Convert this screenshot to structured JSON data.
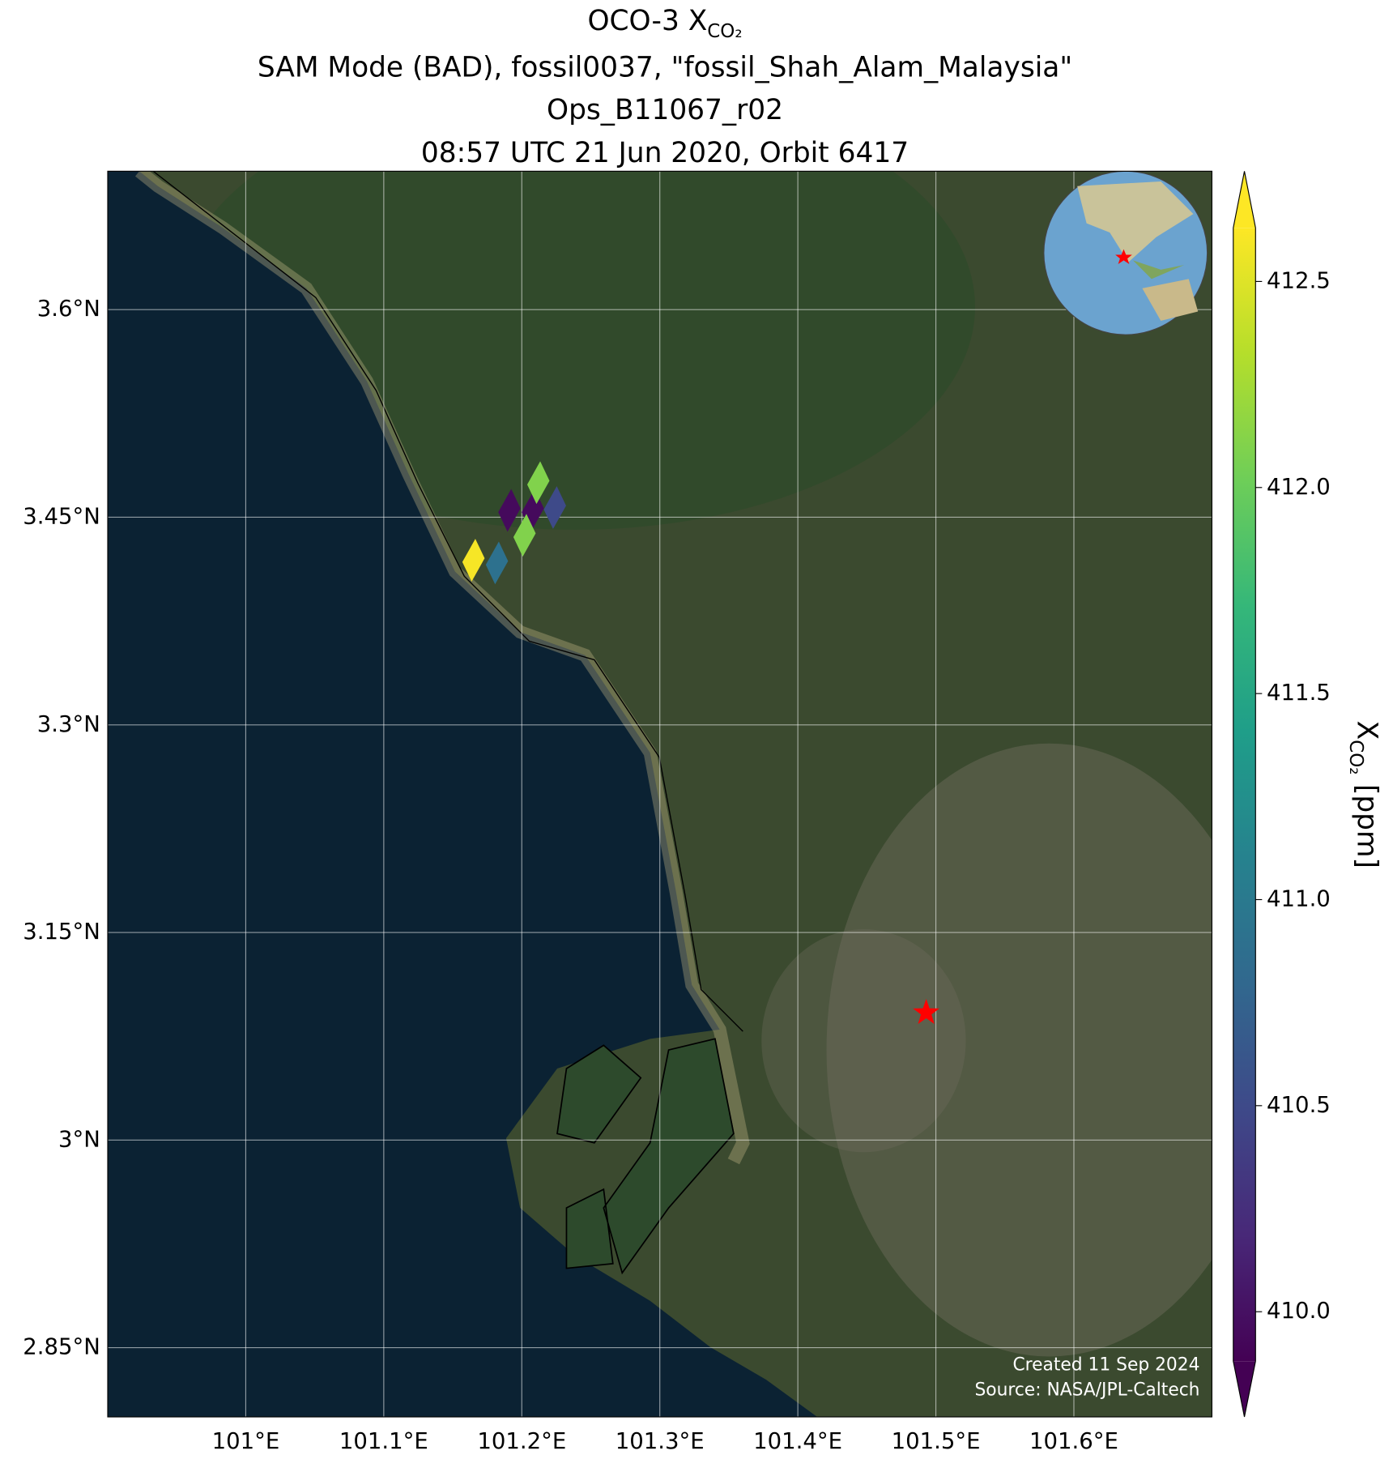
{
  "chart_data": {
    "type": "map",
    "title": "OCO-3 X",
    "title_sub": "CO₂",
    "subtitle": [
      "SAM Mode (BAD), fossil0037, \"fossil_Shah_Alam_Malaysia\"",
      "Ops_B11067_r02",
      "08:57 UTC 21 Jun 2020, Orbit 6417"
    ],
    "xlim": [
      100.9,
      101.7
    ],
    "ylim": [
      2.8,
      3.7
    ],
    "xticks": [
      {
        "value": 101.0,
        "label": "101°E"
      },
      {
        "value": 101.1,
        "label": "101.1°E"
      },
      {
        "value": 101.2,
        "label": "101.2°E"
      },
      {
        "value": 101.3,
        "label": "101.3°E"
      },
      {
        "value": 101.4,
        "label": "101.4°E"
      },
      {
        "value": 101.5,
        "label": "101.5°E"
      },
      {
        "value": 101.6,
        "label": "101.6°E"
      }
    ],
    "yticks": [
      {
        "value": 2.85,
        "label": "2.85°N"
      },
      {
        "value": 3.0,
        "label": "3°N"
      },
      {
        "value": 3.15,
        "label": "3.15°N"
      },
      {
        "value": 3.3,
        "label": "3.3°N"
      },
      {
        "value": 3.45,
        "label": "3.45°N"
      },
      {
        "value": 3.6,
        "label": "3.6°N"
      }
    ],
    "grid": true,
    "x": [
      101.165,
      101.182,
      101.191,
      101.208,
      101.212,
      101.202,
      101.224
    ],
    "y": [
      3.419,
      3.417,
      3.455,
      3.455,
      3.475,
      3.437,
      3.457
    ],
    "values": [
      412.6,
      410.9,
      409.95,
      409.95,
      412.1,
      412.1,
      410.5
    ],
    "colormap": "viridis",
    "clim": [
      409.88,
      412.63
    ],
    "cticks": [
      {
        "value": 410.0,
        "label": "410.0"
      },
      410.5,
      {
        "value": 411.0,
        "label": "411.0"
      },
      411.5,
      {
        "value": 412.0,
        "label": "412.0"
      },
      412.5
    ],
    "colorbar_label": "X",
    "colorbar_label_sub": "CO₂",
    "colorbar_label_unit": "[ppm]",
    "target": {
      "lon": 101.493,
      "lat": 3.092,
      "color": "#ff0000"
    },
    "annotations": [
      "Created 11 Sep 2024",
      "Source: NASA/JPL-Caltech"
    ]
  }
}
